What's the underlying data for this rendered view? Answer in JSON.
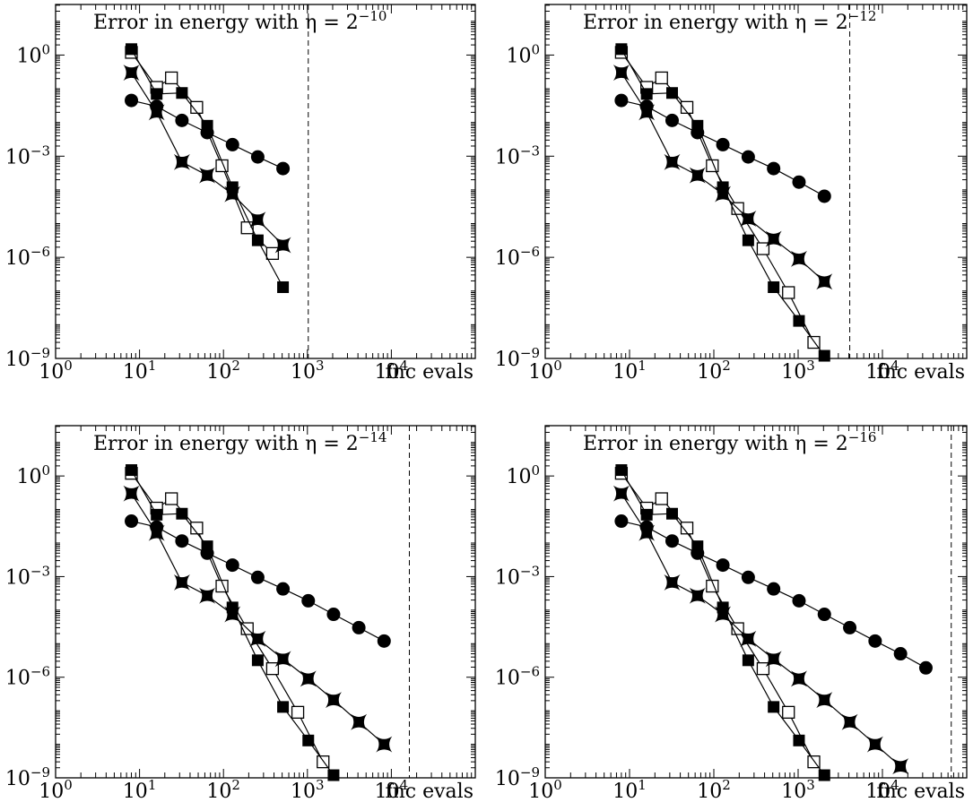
{
  "figure": {
    "x_end_label": "fnc evals"
  },
  "chart_data": [
    {
      "type": "scatter",
      "title": "Error in energy with η = 2",
      "title_exponent": "−10",
      "xscale": "log",
      "yscale": "log",
      "xlim": [
        1,
        100000
      ],
      "ylim": [
        1e-09,
        31.6
      ],
      "xticks": [
        "10^0",
        "10^1",
        "10^2",
        "10^3",
        "10^4"
      ],
      "yticks": [
        "10^-9",
        "10^-6",
        "10^-3",
        "10^0"
      ],
      "reference_line_x": 1024,
      "series": [
        {
          "marker": "filled-circle",
          "x": [
            8,
            16,
            32,
            64,
            128,
            256,
            512
          ],
          "y": [
            0.045,
            0.03,
            0.0115,
            0.005,
            0.0022,
            0.00095,
            0.00043
          ]
        },
        {
          "marker": "open-square",
          "x": [
            8,
            16,
            24,
            48,
            96,
            192,
            384
          ],
          "y": [
            1.2,
            0.11,
            0.21,
            0.028,
            0.00052,
            7.5e-06,
            1.3e-06
          ]
        },
        {
          "marker": "filled-square",
          "x": [
            8,
            16,
            32,
            64,
            128,
            256,
            512
          ],
          "y": [
            1.5,
            0.07,
            0.075,
            0.008,
            0.00012,
            3.2e-06,
            1.3e-07
          ]
        },
        {
          "marker": "star",
          "x": [
            8,
            16,
            32,
            64,
            128,
            256,
            512
          ],
          "y": [
            0.3,
            0.02,
            0.00067,
            0.00027,
            7.5e-05,
            1.3e-05,
            2.3e-06
          ]
        }
      ]
    },
    {
      "type": "scatter",
      "title": "Error in energy with η = 2",
      "title_exponent": "−12",
      "xscale": "log",
      "yscale": "log",
      "xlim": [
        1,
        100000
      ],
      "ylim": [
        1e-09,
        31.6
      ],
      "xticks": [
        "10^0",
        "10^1",
        "10^2",
        "10^3",
        "10^4"
      ],
      "yticks": [
        "10^-9",
        "10^-6",
        "10^-3",
        "10^0"
      ],
      "reference_line_x": 4096,
      "series": [
        {
          "marker": "filled-circle",
          "x": [
            8,
            16,
            32,
            64,
            128,
            256,
            512,
            1024,
            2048
          ],
          "y": [
            0.045,
            0.03,
            0.0115,
            0.005,
            0.0022,
            0.00095,
            0.00043,
            0.00017,
            6.5e-05
          ]
        },
        {
          "marker": "open-square",
          "x": [
            8,
            16,
            24,
            48,
            96,
            192,
            384,
            768,
            1536
          ],
          "y": [
            1.2,
            0.11,
            0.21,
            0.028,
            0.00052,
            2.8e-05,
            1.8e-06,
            9e-08,
            3e-09
          ]
        },
        {
          "marker": "filled-square",
          "x": [
            8,
            16,
            32,
            64,
            128,
            256,
            512,
            1024,
            2048
          ],
          "y": [
            1.5,
            0.07,
            0.075,
            0.008,
            0.00012,
            3.2e-06,
            1.3e-07,
            1.3e-08,
            1.2e-09
          ]
        },
        {
          "marker": "star",
          "x": [
            8,
            16,
            32,
            64,
            128,
            256,
            512,
            1024,
            2048
          ],
          "y": [
            0.3,
            0.02,
            0.00067,
            0.00027,
            7.5e-05,
            1.4e-05,
            3.5e-06,
            9e-07,
            1.9e-07
          ]
        }
      ]
    },
    {
      "type": "scatter",
      "title": "Error in energy with η = 2",
      "title_exponent": "−14",
      "xscale": "log",
      "yscale": "log",
      "xlim": [
        1,
        100000
      ],
      "ylim": [
        1e-09,
        31.6
      ],
      "xticks": [
        "10^0",
        "10^1",
        "10^2",
        "10^3",
        "10^4"
      ],
      "yticks": [
        "10^-9",
        "10^-6",
        "10^-3",
        "10^0"
      ],
      "reference_line_x": 16384,
      "series": [
        {
          "marker": "filled-circle",
          "x": [
            8,
            16,
            32,
            64,
            128,
            256,
            512,
            1024,
            2048,
            4096,
            8192
          ],
          "y": [
            0.045,
            0.03,
            0.0115,
            0.005,
            0.0022,
            0.00095,
            0.00043,
            0.00019,
            7.5e-05,
            3e-05,
            1.2e-05
          ]
        },
        {
          "marker": "open-square",
          "x": [
            8,
            16,
            24,
            48,
            96,
            192,
            384,
            768,
            1536
          ],
          "y": [
            1.2,
            0.11,
            0.21,
            0.028,
            0.00052,
            2.8e-05,
            1.8e-06,
            9e-08,
            3e-09
          ]
        },
        {
          "marker": "filled-square",
          "x": [
            8,
            16,
            32,
            64,
            128,
            256,
            512,
            1024,
            2048
          ],
          "y": [
            1.5,
            0.07,
            0.075,
            0.008,
            0.00012,
            3.2e-06,
            1.3e-07,
            1.3e-08,
            1.2e-09
          ]
        },
        {
          "marker": "star",
          "x": [
            8,
            16,
            32,
            64,
            128,
            256,
            512,
            1024,
            2048,
            4096,
            8192
          ],
          "y": [
            0.3,
            0.02,
            0.00067,
            0.00027,
            7.5e-05,
            1.4e-05,
            3.5e-06,
            9e-07,
            2.1e-07,
            4.6e-08,
            1e-08
          ]
        }
      ]
    },
    {
      "type": "scatter",
      "title": "Error in energy with η = 2",
      "title_exponent": "−16",
      "xscale": "log",
      "yscale": "log",
      "xlim": [
        1,
        100000
      ],
      "ylim": [
        1e-09,
        31.6
      ],
      "xticks": [
        "10^0",
        "10^1",
        "10^2",
        "10^3",
        "10^4"
      ],
      "yticks": [
        "10^-9",
        "10^-6",
        "10^-3",
        "10^0"
      ],
      "reference_line_x": 65536,
      "series": [
        {
          "marker": "filled-circle",
          "x": [
            8,
            16,
            32,
            64,
            128,
            256,
            512,
            1024,
            2048,
            4096,
            8192,
            16384,
            32768
          ],
          "y": [
            0.045,
            0.03,
            0.0115,
            0.005,
            0.0022,
            0.00095,
            0.00043,
            0.00019,
            7.5e-05,
            3e-05,
            1.2e-05,
            5e-06,
            1.9e-06
          ]
        },
        {
          "marker": "open-square",
          "x": [
            8,
            16,
            24,
            48,
            96,
            192,
            384,
            768,
            1536
          ],
          "y": [
            1.2,
            0.11,
            0.21,
            0.028,
            0.00052,
            2.8e-05,
            1.8e-06,
            9e-08,
            3e-09
          ]
        },
        {
          "marker": "filled-square",
          "x": [
            8,
            16,
            32,
            64,
            128,
            256,
            512,
            1024,
            2048
          ],
          "y": [
            1.5,
            0.07,
            0.075,
            0.008,
            0.00012,
            3.2e-06,
            1.3e-07,
            1.3e-08,
            1.2e-09
          ]
        },
        {
          "marker": "star",
          "x": [
            8,
            16,
            32,
            64,
            128,
            256,
            512,
            1024,
            2048,
            4096,
            8192,
            16384
          ],
          "y": [
            0.3,
            0.02,
            0.00067,
            0.00027,
            7.5e-05,
            1.4e-05,
            3.5e-06,
            9e-07,
            2.1e-07,
            4.6e-08,
            1e-08,
            2.2e-09
          ]
        }
      ]
    }
  ]
}
